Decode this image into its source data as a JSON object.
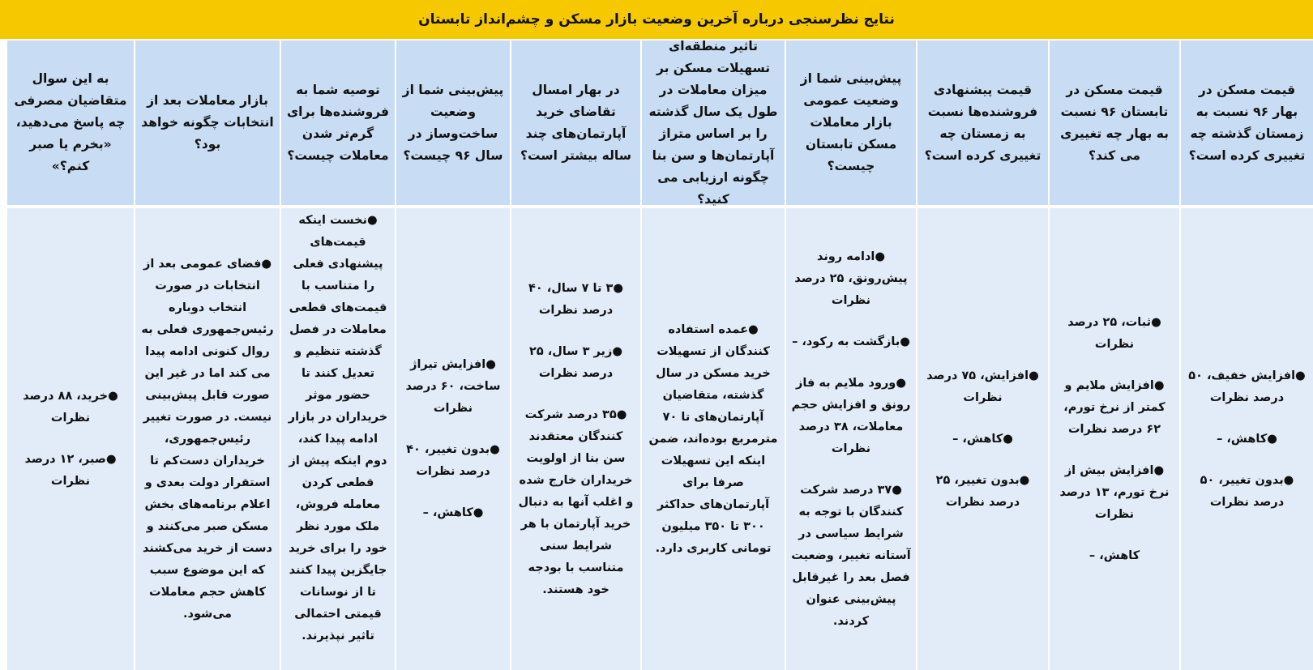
{
  "title": "نتایج نظرسنجی درباره آخرین وضعیت بازار مسکن و چشم‌انداز تابستان",
  "colors": {
    "title_bar": "#f6c800",
    "header_cell": "#c8dcf3",
    "body_cell": "#e2ecf8"
  },
  "columns": [
    {
      "header": "قیمت مسکن در بهار ۹۶ نسبت به زمستان گذشته چه تغییری کرده است؟",
      "items": [
        "●افزایش خفیف، ۵۰ درصد نظرات",
        "●کاهش، –",
        "●بدون تغییر، ۵۰ درصد نظرات"
      ]
    },
    {
      "header": "قیمت مسکن در تابستان ۹۶ نسبت به بهار چه تغییری می کند؟",
      "items": [
        "●ثبات، ۲۵ درصد نظرات",
        "●افزایش ملایم و کمتر از نرخ تورم، ۶۲ درصد نظرات",
        "●افزایش بیش از نرخ تورم، ۱۳ درصد نظرات",
        "کاهش، –"
      ]
    },
    {
      "header": "قیمت پیشنهادی فروشنده‌ها نسبت به زمستان چه تغییری کرده است؟",
      "items": [
        "●افزایش، ۷۵ درصد نظرات",
        "●کاهش، –",
        "●بدون تغییر، ۲۵ درصد نظرات"
      ]
    },
    {
      "header": "پیش‌بینی شما از وضعیت عمومی بازار معاملات مسکن تابستان چیست؟",
      "items": [
        "●ادامه روند پیش‌رونق، ۲۵ درصد نظرات",
        "●بازگشت به رکود، –",
        "●ورود ملایم به فاز رونق و افزایش حجم معاملات، ۳۸ درصد نظرات",
        "●۳۷ درصد شرکت کنندگان با توجه به شرایط سیاسی در آستانه تغییر، وضعیت فصل بعد را غیرقابل پیش‌بینی عنوان کردند."
      ]
    },
    {
      "header": "تاثیر منطقه‌ای تسهیلات مسکن بر میزان معاملات در طول یک سال گذشته را بر اساس متراژ آپارتمان‌ها و سن بنا چگونه ارزیابی می کنید؟",
      "items": [
        "●عمده استفاده کنندگان از تسهیلات خرید مسکن در سال گذشته، متقاضیان آپارتمان‌های تا ۷۰ مترمربع بوده‌اند، ضمن اینکه این تسهیلات صرفا برای آپارتمان‌های حداکثر ۳۰۰ تا ۳۵۰ میلیون تومانی کاربری دارد."
      ]
    },
    {
      "header": "در بهار امسال تقاضای خرید آپارتمان‌های چند ساله بیشتر است؟",
      "items": [
        "●۳ تا ۷ سال، ۴۰ درصد نظرات",
        "●زیر ۳ سال، ۲۵ درصد نظرات",
        "●۳۵ درصد شرکت کنندگان معتقدند سن بنا از اولویت خریداران خارج شده و اغلب آنها به دنبال خرید آپارتمان با هر شرایط سنی متناسب با بودجه خود هستند."
      ]
    },
    {
      "header": "پیش‌بینی شما از وضعیت ساخت‌وساز در سال ۹۶ چیست؟",
      "items": [
        "●افزایش تیراژ ساخت، ۶۰ درصد نظرات",
        "●بدون تغییر، ۴۰ درصد نظرات",
        "●کاهش، –"
      ]
    },
    {
      "header": "توصیه شما به فروشنده‌ها برای گرم‌تر شدن معاملات چیست؟",
      "items": [
        "●نخست اینکه قیمت‌های پیشنهادی فعلی را متناسب با قیمت‌های قطعی معاملات در فصل گذشته تنظیم و تعدیل کنند تا حضور موثر خریداران در بازار ادامه پیدا کند، دوم اینکه پیش از قطعی کردن معامله فروش، ملک مورد نظر خود را برای خرید جایگزین پیدا کنند تا از نوسانات قیمتی احتمالی تاثیر نپذیرند."
      ]
    },
    {
      "header": "بازار معاملات بعد از انتخابات چگونه خواهد بود؟",
      "items": [
        "●فضای عمومی بعد از انتخابات در صورت انتخاب دوباره رئیس‌جمهوری فعلی به روال کنونی ادامه پیدا می کند اما در غیر این صورت قابل پیش‌بینی نیست. در صورت تغییر رئیس‌جمهوری، خریداران دست‌کم تا استقرار دولت بعدی و اعلام برنامه‌های بخش مسکن صبر می‌کنند و دست از خرید می‌کشند که این موضوع سبب کاهش حجم معاملات می‌شود."
      ]
    },
    {
      "header": "به این سوال متقاضیان مصرفی چه پاسخ می‌دهید، «بخرم یا صبر کنم؟»",
      "items": [
        "●خرید، ۸۸ درصد نظرات",
        "●صبر، ۱۲ درصد نظرات"
      ]
    }
  ]
}
